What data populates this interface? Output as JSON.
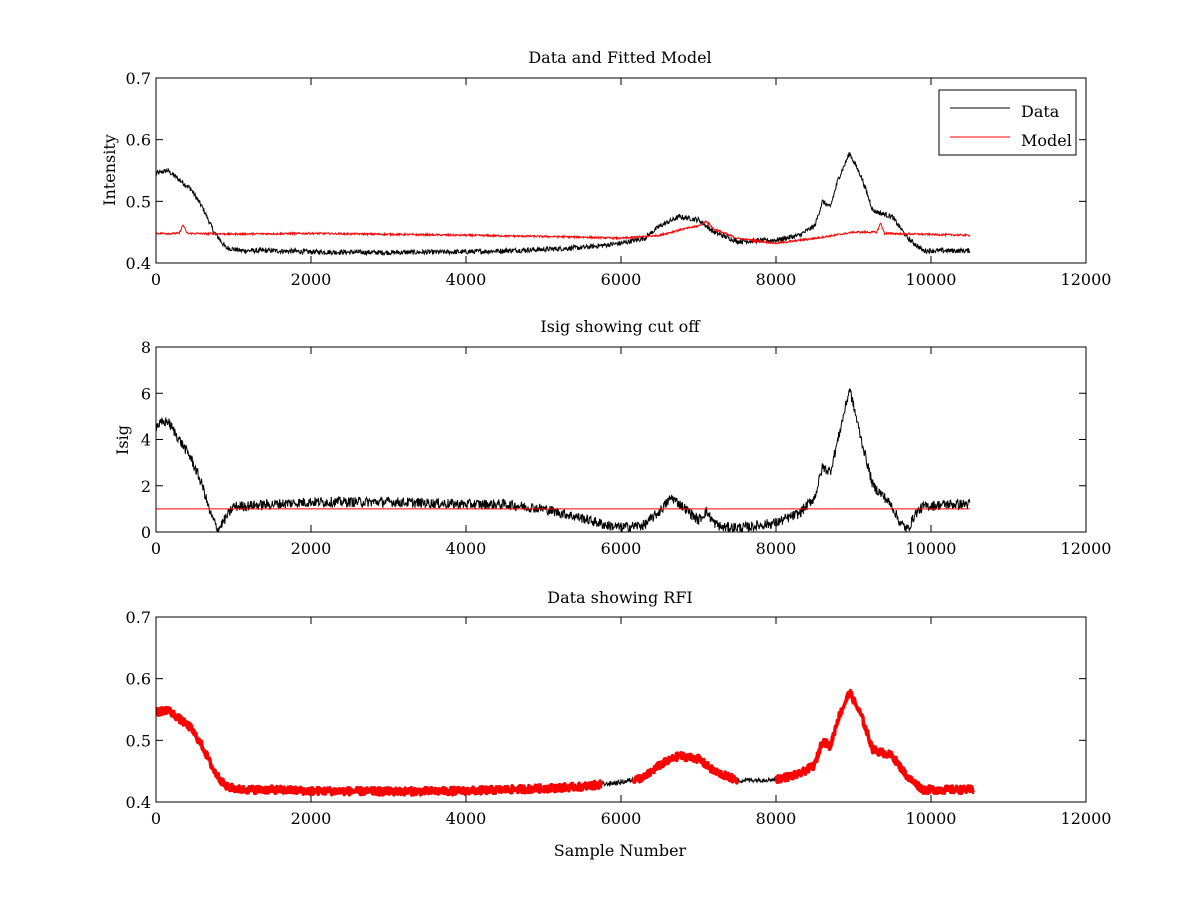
{
  "chart_data": [
    {
      "type": "line",
      "title": "Data and Fitted Model",
      "xlabel": "",
      "ylabel": "Intensity",
      "xlim": [
        0,
        12000
      ],
      "ylim": [
        0.4,
        0.7
      ],
      "xticks": [
        "0",
        "2000",
        "4000",
        "6000",
        "8000",
        "10000",
        "12000"
      ],
      "yticks": [
        "0.4",
        "0.5",
        "0.6",
        "0.7"
      ],
      "legend": {
        "placement": "top-right"
      },
      "series": [
        {
          "name": "Data",
          "color": "#000000",
          "noise": 0.004,
          "x": [
            0,
            150,
            300,
            450,
            600,
            750,
            900,
            1100,
            1500,
            2000,
            3000,
            4000,
            5000,
            5500,
            6000,
            6300,
            6500,
            6750,
            7000,
            7200,
            7500,
            8000,
            8300,
            8500,
            8600,
            8700,
            8800,
            8950,
            9100,
            9250,
            9500,
            9700,
            9900,
            10200,
            10500
          ],
          "y": [
            0.545,
            0.55,
            0.535,
            0.52,
            0.49,
            0.45,
            0.425,
            0.42,
            0.42,
            0.418,
            0.417,
            0.418,
            0.422,
            0.425,
            0.432,
            0.44,
            0.46,
            0.475,
            0.47,
            0.45,
            0.435,
            0.437,
            0.445,
            0.46,
            0.5,
            0.49,
            0.535,
            0.578,
            0.54,
            0.485,
            0.475,
            0.44,
            0.42,
            0.42,
            0.42
          ]
        },
        {
          "name": "Model",
          "color": "#ff0000",
          "noise": 0.0015,
          "x": [
            0,
            300,
            350,
            400,
            1000,
            2000,
            4000,
            5000,
            5500,
            6000,
            6500,
            6800,
            7000,
            7100,
            7200,
            7500,
            8000,
            8500,
            9000,
            9300,
            9350,
            9400,
            10500
          ],
          "y": [
            0.448,
            0.448,
            0.462,
            0.448,
            0.447,
            0.448,
            0.445,
            0.443,
            0.442,
            0.44,
            0.445,
            0.455,
            0.46,
            0.468,
            0.455,
            0.44,
            0.432,
            0.44,
            0.45,
            0.45,
            0.465,
            0.448,
            0.445
          ]
        }
      ]
    },
    {
      "type": "line",
      "title": "Isig showing cut off",
      "xlabel": "",
      "ylabel": "Isig",
      "xlim": [
        0,
        12000
      ],
      "ylim": [
        0,
        8
      ],
      "xticks": [
        "0",
        "2000",
        "4000",
        "6000",
        "8000",
        "10000",
        "12000"
      ],
      "yticks": [
        "0",
        "2",
        "4",
        "6",
        "8"
      ],
      "series": [
        {
          "color": "#000000",
          "noise": 0.22,
          "x": [
            0,
            150,
            300,
            450,
            600,
            700,
            800,
            900,
            1000,
            1500,
            2000,
            3000,
            4000,
            4500,
            5000,
            5500,
            5800,
            6000,
            6300,
            6500,
            6650,
            6800,
            7000,
            7100,
            7200,
            7300,
            7600,
            8000,
            8300,
            8500,
            8600,
            8700,
            8800,
            8950,
            9100,
            9250,
            9400,
            9500,
            9600,
            9700,
            9800,
            9900,
            10200,
            10500
          ],
          "y": [
            4.6,
            4.8,
            4.0,
            3.2,
            2.0,
            0.8,
            0.1,
            0.6,
            1.1,
            1.2,
            1.3,
            1.3,
            1.2,
            1.2,
            1.0,
            0.6,
            0.3,
            0.2,
            0.3,
            0.9,
            1.5,
            1.1,
            0.5,
            0.9,
            0.4,
            0.2,
            0.2,
            0.4,
            0.8,
            1.5,
            2.8,
            2.6,
            4.0,
            6.2,
            4.0,
            2.0,
            1.5,
            1.1,
            0.4,
            0.1,
            0.8,
            1.1,
            1.2,
            1.2
          ]
        },
        {
          "color": "#ff0000",
          "noise": 0,
          "x": [
            0,
            10500
          ],
          "y": [
            1.0,
            1.0
          ]
        }
      ]
    },
    {
      "type": "line",
      "title": "Data showing RFI",
      "xlabel": "Sample Number",
      "ylabel": "",
      "xlim": [
        0,
        12000
      ],
      "ylim": [
        0.4,
        0.7
      ],
      "xticks": [
        "0",
        "2000",
        "4000",
        "6000",
        "8000",
        "10000",
        "12000"
      ],
      "yticks": [
        "0.4",
        "0.5",
        "0.6",
        "0.7"
      ],
      "series": [
        {
          "color": "#000000",
          "noise": 0.004,
          "x": [
            0,
            150,
            300,
            450,
            600,
            750,
            900,
            1100,
            1500,
            2000,
            3000,
            4000,
            5000,
            5500,
            6000,
            6300,
            6500,
            6750,
            7000,
            7200,
            7500,
            8000,
            8300,
            8500,
            8600,
            8700,
            8800,
            8950,
            9100,
            9250,
            9500,
            9700,
            9900,
            10200,
            10500
          ],
          "y": [
            0.545,
            0.55,
            0.535,
            0.52,
            0.49,
            0.45,
            0.425,
            0.42,
            0.42,
            0.418,
            0.417,
            0.418,
            0.422,
            0.425,
            0.432,
            0.44,
            0.46,
            0.475,
            0.47,
            0.45,
            0.435,
            0.437,
            0.445,
            0.46,
            0.5,
            0.49,
            0.535,
            0.578,
            0.54,
            0.485,
            0.475,
            0.44,
            0.42,
            0.42,
            0.42
          ]
        }
      ],
      "highlight": {
        "color": "#ff0000",
        "ranges": [
          [
            0,
            5750
          ],
          [
            6150,
            7500
          ],
          [
            8000,
            10550
          ]
        ]
      }
    }
  ]
}
